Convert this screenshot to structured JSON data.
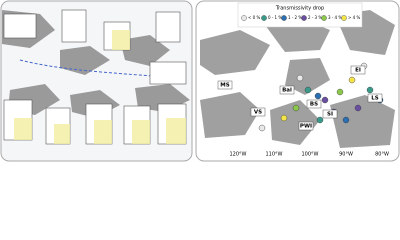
{
  "right_map": {
    "legend_title": "Transmissivity drop",
    "legend_items": [
      {
        "label": "< 0 %",
        "color": "#e8e8e8"
      },
      {
        "label": "0 - 1 %",
        "color": "#3a9a8a"
      },
      {
        "label": "1 - 2 %",
        "color": "#2c6fb0"
      },
      {
        "label": "2 - 3 %",
        "color": "#6a4fa0"
      },
      {
        "label": "3 - 4 %",
        "color": "#8cc84b"
      },
      {
        "label": "> 4 %",
        "color": "#f2e44a"
      }
    ],
    "regions": [
      "MS",
      "Bal",
      "VS",
      "BS",
      "SI",
      "PWI",
      "LS",
      "EI"
    ],
    "longitudes": [
      "120°W",
      "110°W",
      "100°W",
      "90°W",
      "80°W"
    ]
  }
}
